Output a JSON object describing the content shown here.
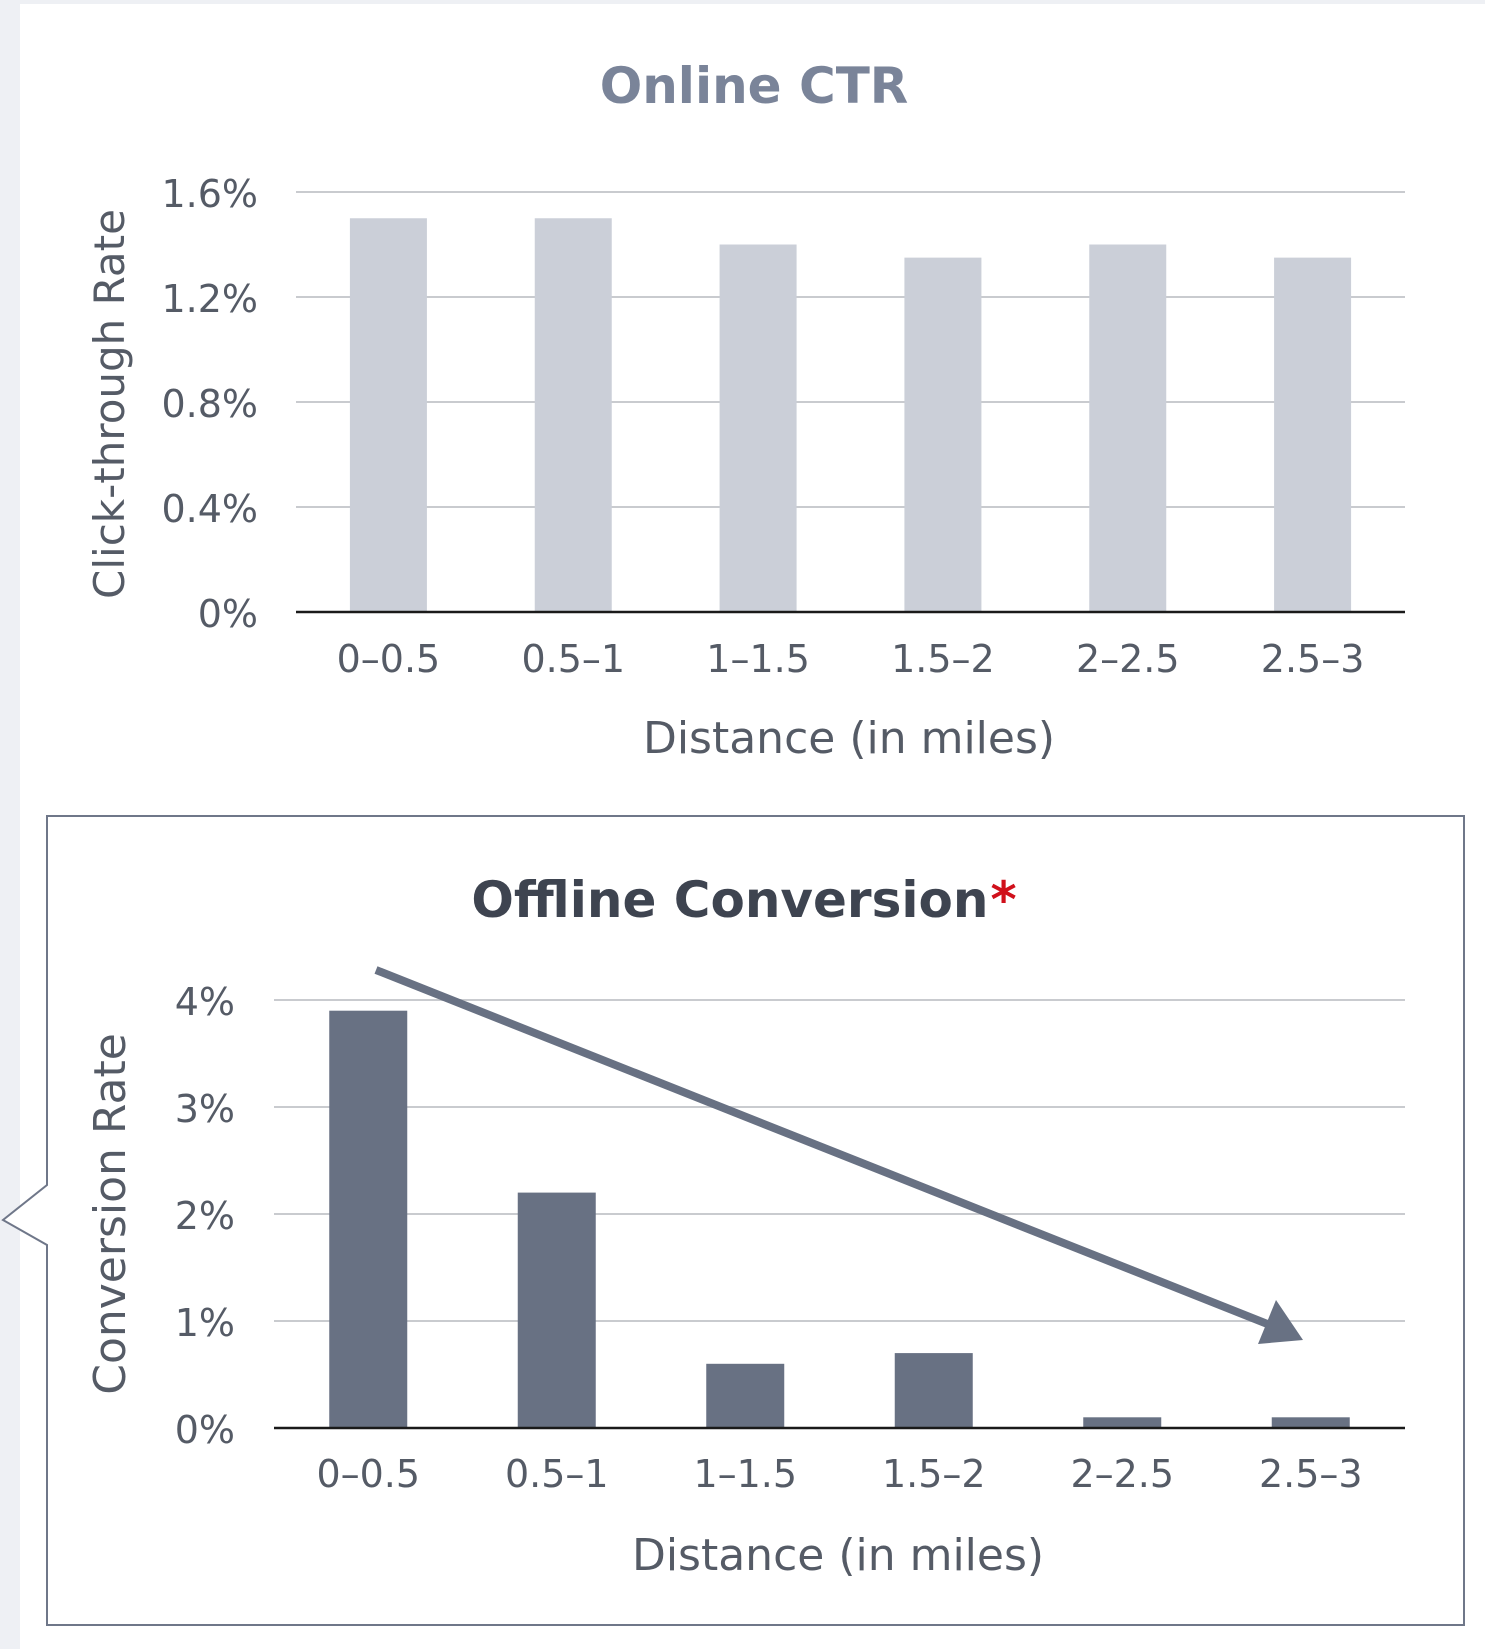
{
  "chart_data": [
    {
      "type": "bar",
      "title": "Online CTR",
      "xlabel": "Distance (in miles)",
      "ylabel": "Click-through Rate",
      "categories": [
        "0–0.5",
        "0.5–1",
        "1–1.5",
        "1.5–2",
        "2–2.5",
        "2.5–3"
      ],
      "values": [
        1.5,
        1.5,
        1.4,
        1.35,
        1.4,
        1.35
      ],
      "ylim": [
        0,
        1.6
      ],
      "yticks": [
        {
          "value": 0,
          "label": "0%"
        },
        {
          "value": 0.4,
          "label": "0.4%"
        },
        {
          "value": 0.8,
          "label": "0.8%"
        },
        {
          "value": 1.2,
          "label": "1.2%"
        },
        {
          "value": 1.6,
          "label": "1.6%"
        }
      ],
      "grid": true,
      "bar_color": "#cbcfd8",
      "title_color": "#7a8499"
    },
    {
      "type": "bar",
      "title": "Offline Conversion",
      "title_marker": "*",
      "xlabel": "Distance (in miles)",
      "ylabel": "Conversion Rate",
      "categories": [
        "0–0.5",
        "0.5–1",
        "1–1.5",
        "1.5–2",
        "2–2.5",
        "2.5–3"
      ],
      "values": [
        3.9,
        2.2,
        0.6,
        0.7,
        0.1,
        0.1
      ],
      "ylim": [
        0,
        4
      ],
      "yticks": [
        {
          "value": 0,
          "label": "0%"
        },
        {
          "value": 1,
          "label": "1%"
        },
        {
          "value": 2,
          "label": "2%"
        },
        {
          "value": 3,
          "label": "3%"
        },
        {
          "value": 4,
          "label": "4%"
        }
      ],
      "grid": true,
      "trend_arrow": "decreasing",
      "bar_color": "#687183",
      "title_color": "#3e4450",
      "marker_color": "#d0101b"
    }
  ]
}
